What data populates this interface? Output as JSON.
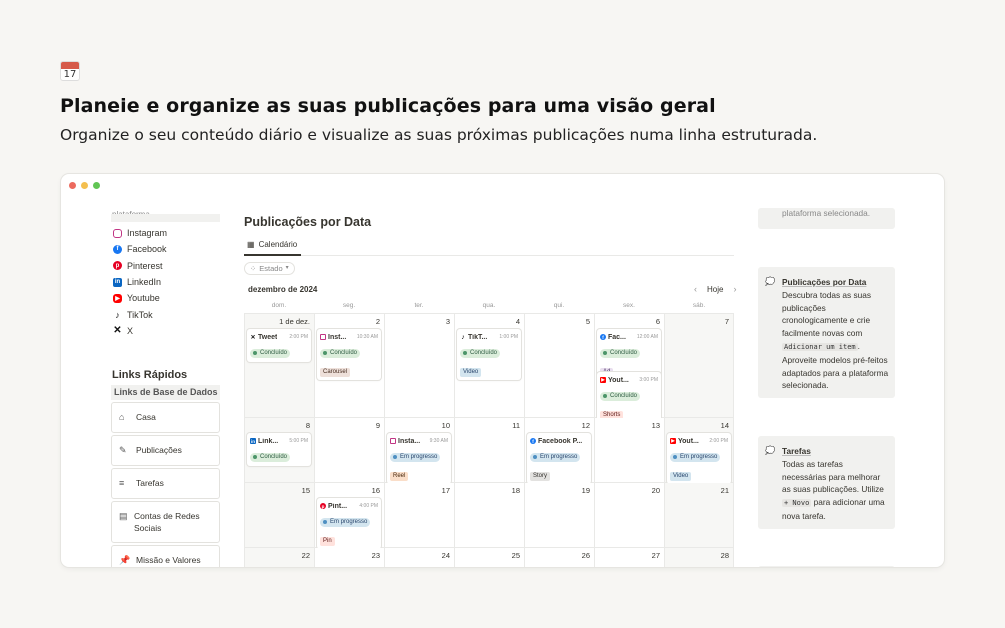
{
  "page": {
    "icon_day": "17",
    "headline": "Planeie e organize as suas publicações para uma visão geral",
    "subheadline": "Organize o seu conteúdo diário e visualize as suas próximas publicações numa linha estruturada."
  },
  "left": {
    "cut_text": "plataforma",
    "platforms": [
      {
        "label": "Instagram",
        "icon": "instagram-icon",
        "color": "#c13584"
      },
      {
        "label": "Facebook",
        "icon": "facebook-icon",
        "color": "#1877f2"
      },
      {
        "label": "Pinterest",
        "icon": "pinterest-icon",
        "color": "#e60023"
      },
      {
        "label": "LinkedIn",
        "icon": "linkedin-icon",
        "color": "#0a66c2"
      },
      {
        "label": "Youtube",
        "icon": "youtube-icon",
        "color": "#ff0000"
      },
      {
        "label": "TikTok",
        "icon": "tiktok-icon",
        "color": "#111111"
      },
      {
        "label": "X",
        "icon": "x-icon",
        "color": "#111111"
      }
    ],
    "quick_links_title": "Links Rápidos",
    "quick_links_subtitle": "Links de Base de Dados",
    "quick_links": [
      {
        "label": "Casa",
        "icon": "home-icon"
      },
      {
        "label": "Publicações",
        "icon": "edit-icon"
      },
      {
        "label": "Tarefas",
        "icon": "tasks-icon"
      },
      {
        "label": "Contas de Redes Sociais",
        "icon": "book-icon"
      },
      {
        "label": "Missão e Valores",
        "icon": "pin-icon"
      }
    ]
  },
  "calendar": {
    "title": "Publicações por Data",
    "tab": "Calendário",
    "filter": "Estado",
    "month": "dezembro de 2024",
    "today": "Hoje",
    "weekdays": [
      "dom.",
      "seg.",
      "ter.",
      "qua.",
      "qui.",
      "sex.",
      "sáb."
    ],
    "weeks": [
      {
        "days": [
          "1 de dez.",
          "2",
          "3",
          "4",
          "5",
          "6",
          "7"
        ]
      },
      {
        "days": [
          "8",
          "9",
          "10",
          "11",
          "12",
          "13",
          "14"
        ]
      },
      {
        "days": [
          "15",
          "16",
          "17",
          "18",
          "19",
          "20",
          "21"
        ]
      },
      {
        "days": [
          "22",
          "23",
          "24",
          "25",
          "26",
          "27",
          "28"
        ]
      }
    ],
    "events": {
      "e1": {
        "title": "Tweet",
        "time": "2:00 PM",
        "status": "Concluído"
      },
      "e2": {
        "title": "Inst...",
        "time": "10:30 AM",
        "status": "Concluído",
        "type": "Carousel"
      },
      "e3": {
        "title": "TikT...",
        "time": "1:00 PM",
        "status": "Concluído",
        "type": "Video"
      },
      "e4": {
        "title": "Fac...",
        "time": "12:00 AM",
        "status": "Concluído",
        "type": "Ad"
      },
      "e5": {
        "title": "Yout...",
        "time": "3:00 PM",
        "status": "Concluído",
        "type": "Shorts"
      },
      "e6": {
        "title": "Link...",
        "time": "5:00 PM",
        "status": "Concluído"
      },
      "e7": {
        "title": "Insta...",
        "time": "9:30 AM",
        "status": "Em progresso",
        "type": "Reel"
      },
      "e8": {
        "title": "Facebook P...",
        "time": "",
        "status": "Em progresso",
        "type": "Story"
      },
      "e9": {
        "title": "Yout...",
        "time": "2:00 PM",
        "status": "Em progresso",
        "type": "Video"
      },
      "e10": {
        "title": "Pint...",
        "time": "4:00 PM",
        "status": "Em progresso",
        "type": "Pin"
      }
    }
  },
  "right": {
    "cut_text": "plataforma selecionada.",
    "callout1": {
      "title": "Publicações por Data",
      "text_a": "Descubra todas as suas publicações cronologicamente e crie facilmente novas com",
      "code": "Adicionar um item",
      "text_b": ". Aproveite modelos pré-feitos adaptados para a plataforma selecionada."
    },
    "callout2": {
      "title": "Tarefas",
      "text_a": "Todas as tarefas necessárias para melhorar as suas publicações. Utilize",
      "code": "+ Novo",
      "text_b": "para adicionar uma nova tarefa."
    }
  }
}
